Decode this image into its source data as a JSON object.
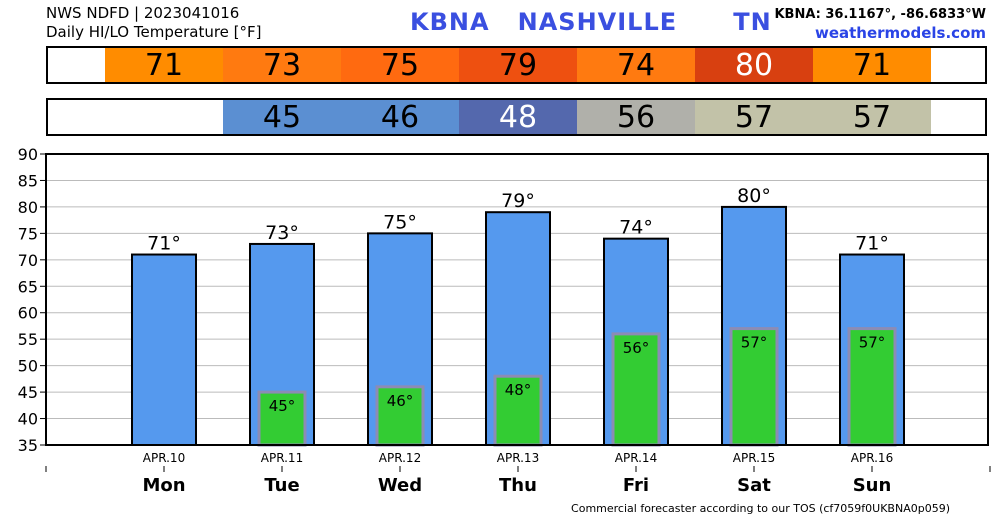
{
  "header": {
    "line1": "NWS NDFD | 2023041016",
    "line2": "Daily HI/LO Temperature [°F]",
    "station": "KBNA   NASHVILLE      TN",
    "coords": "KBNA: 36.1167°, -86.6833°W",
    "site": "weathermodels.com"
  },
  "hi_strip": [
    {
      "value": "71",
      "color": "#ff8c00",
      "text_color": "#000000"
    },
    {
      "value": "73",
      "color": "#ff7a10",
      "text_color": "#000000"
    },
    {
      "value": "75",
      "color": "#ff6a10",
      "text_color": "#000000"
    },
    {
      "value": "79",
      "color": "#ee5010",
      "text_color": "#000000"
    },
    {
      "value": "74",
      "color": "#ff7a10",
      "text_color": "#000000"
    },
    {
      "value": "80",
      "color": "#d84010",
      "text_color": "#ffffff"
    },
    {
      "value": "71",
      "color": "#ff8c00",
      "text_color": "#000000"
    }
  ],
  "lo_strip": [
    {
      "value": "",
      "color": "#ffffff",
      "text_color": "#000000"
    },
    {
      "value": "45",
      "color": "#5b8fd2",
      "text_color": "#000000"
    },
    {
      "value": "46",
      "color": "#5b8fd2",
      "text_color": "#000000"
    },
    {
      "value": "48",
      "color": "#5468ad",
      "text_color": "#ffffff"
    },
    {
      "value": "56",
      "color": "#b0b0aa",
      "text_color": "#000000"
    },
    {
      "value": "57",
      "color": "#c2c2a8",
      "text_color": "#000000"
    },
    {
      "value": "57",
      "color": "#c2c2a8",
      "text_color": "#000000"
    }
  ],
  "chart_data": {
    "type": "bar",
    "categories": [
      "APR.10",
      "APR.11",
      "APR.12",
      "APR.13",
      "APR.14",
      "APR.15",
      "APR.16"
    ],
    "days": [
      "Mon",
      "Tue",
      "Wed",
      "Thu",
      "Fri",
      "Sat",
      "Sun"
    ],
    "series": [
      {
        "values": [
          71,
          73,
          75,
          79,
          74,
          80,
          71
        ],
        "color": "#5599ee"
      },
      {
        "values": [
          null,
          45,
          46,
          48,
          56,
          57,
          57
        ],
        "color": "#33cc33"
      }
    ],
    "hi_labels": [
      "71°",
      "73°",
      "75°",
      "79°",
      "74°",
      "80°",
      "71°"
    ],
    "lo_labels": [
      "",
      "45°",
      "46°",
      "48°",
      "56°",
      "57°",
      "57°"
    ],
    "ylim": [
      35,
      90
    ],
    "yticks": [
      "35",
      "40",
      "45",
      "50",
      "55",
      "60",
      "65",
      "70",
      "75",
      "80",
      "85",
      "90"
    ],
    "grid": true
  },
  "footer": "Commercial forecaster according to our TOS (cf7059f0UKBNA0p059)"
}
